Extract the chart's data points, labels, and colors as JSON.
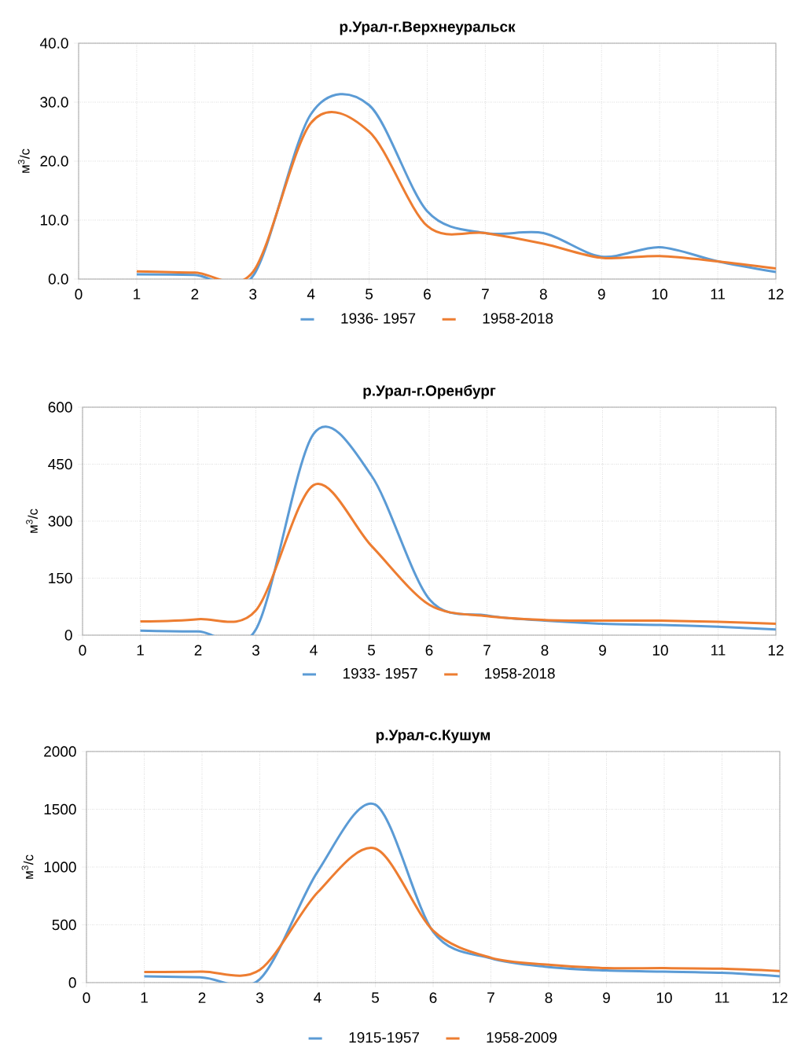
{
  "chart_data": [
    {
      "type": "line",
      "title": "р.Урал-г.Верхнеуральск",
      "ylabel": "м$^{3}$/с",
      "x": [
        1,
        2,
        3,
        4,
        5,
        6,
        7,
        8,
        9,
        10,
        11,
        12
      ],
      "xlim": [
        0,
        12
      ],
      "xticks": [
        0,
        1,
        2,
        3,
        4,
        5,
        6,
        7,
        8,
        9,
        10,
        11,
        12
      ],
      "ylim": [
        0,
        40
      ],
      "yticks": [
        {
          "value": 0,
          "label": "0.0"
        },
        {
          "value": 10,
          "label": "10.0"
        },
        {
          "value": 20,
          "label": "20.0"
        },
        {
          "value": 30,
          "label": "30.0"
        },
        {
          "value": 40,
          "label": "40.0"
        }
      ],
      "grid": true,
      "legend": "bottom",
      "series": [
        {
          "name": "1936- 1957",
          "color": "#5b9bd5",
          "values": [
            0.8,
            0.7,
            0.5,
            28,
            29.5,
            11.5,
            7.8,
            7.8,
            3.8,
            5.4,
            3.0,
            1.2
          ]
        },
        {
          "name": "1958-2018",
          "color": "#ed7d31",
          "values": [
            1.3,
            1.1,
            1.2,
            26.5,
            25,
            9,
            7.8,
            6.0,
            3.6,
            3.9,
            3.0,
            1.8
          ]
        }
      ]
    },
    {
      "type": "line",
      "title": "р.Урал-г.Оренбург",
      "ylabel": "м$^{3}$/с",
      "x": [
        1,
        2,
        3,
        4,
        5,
        6,
        7,
        8,
        9,
        10,
        11,
        12
      ],
      "xlim": [
        0,
        12
      ],
      "xticks": [
        0,
        1,
        2,
        3,
        4,
        5,
        6,
        7,
        8,
        9,
        10,
        11,
        12
      ],
      "ylim": [
        0,
        600
      ],
      "yticks": [
        0,
        150,
        300,
        450,
        600
      ],
      "grid": true,
      "legend": "bottom",
      "series": [
        {
          "name": "1933- 1957",
          "color": "#5b9bd5",
          "values": [
            12,
            10,
            15,
            530,
            420,
            95,
            52,
            38,
            30,
            27,
            22,
            15
          ]
        },
        {
          "name": "1958-2018",
          "color": "#ed7d31",
          "values": [
            36,
            42,
            65,
            395,
            235,
            80,
            50,
            40,
            38,
            38,
            35,
            30
          ]
        }
      ]
    },
    {
      "type": "line",
      "title": "р.Урал-с.Кушум",
      "ylabel": "м$^{3}$/с",
      "x": [
        1,
        2,
        3,
        4,
        5,
        6,
        7,
        8,
        9,
        10,
        11,
        12
      ],
      "xlim": [
        0,
        12
      ],
      "xticks": [
        0,
        1,
        2,
        3,
        4,
        5,
        6,
        7,
        8,
        9,
        10,
        11,
        12
      ],
      "ylim": [
        0,
        2000
      ],
      "yticks": [
        0,
        500,
        1000,
        1500,
        2000
      ],
      "grid": true,
      "legend": "bottom",
      "series": [
        {
          "name": "1915-1957",
          "color": "#5b9bd5",
          "values": [
            55,
            45,
            30,
            960,
            1540,
            440,
            210,
            135,
            105,
            95,
            85,
            55
          ]
        },
        {
          "name": "1958-2009",
          "color": "#ed7d31",
          "values": [
            92,
            95,
            110,
            780,
            1160,
            450,
            215,
            155,
            125,
            125,
            120,
            100
          ]
        }
      ]
    }
  ]
}
